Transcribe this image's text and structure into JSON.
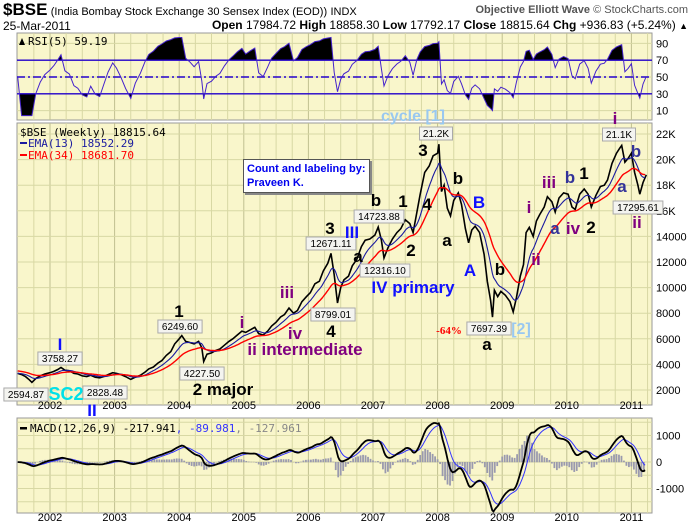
{
  "header": {
    "symbol": "$BSE",
    "description": "(India Bombay Stock Exchange 30 Sensex Index (EOD))",
    "exchange": "INDX",
    "source_brand": "Objective Elliott Wave",
    "source_site": "© StockCharts.com",
    "date": "25-Mar-2011",
    "open_label": "Open",
    "open": "17984.72",
    "high_label": "High",
    "high": "18858.30",
    "low_label": "Low",
    "low": "17792.17",
    "close_label": "Close",
    "close": "18815.64",
    "chg_label": "Chg",
    "chg": "+936.83 (+5.24%)",
    "chg_icon": "up-triangle-icon"
  },
  "info_box": {
    "line1": "Count and labeling by:",
    "line2": "Praveen K."
  },
  "colors": {
    "panel_bg": "#f9f6cb",
    "grid": "#d8d8a4",
    "ema13": "#1a1aa0",
    "ema34": "#ff0000",
    "rsi": "#4422cc",
    "macd": "#000000",
    "signal": "#3333ff",
    "hist": "#9a9aae"
  },
  "chart_data": [
    {
      "type": "line",
      "title": "$BSE (Weekly) 18815.64",
      "legend": [
        "EMA(13) 18552.29",
        "EMA(34) 18681.70"
      ],
      "ytick_labels": [
        "22K",
        "20K",
        "18K",
        "16K",
        "14000",
        "12000",
        "10000",
        "8000",
        "6000",
        "4000",
        "2000"
      ],
      "yticks": [
        22000,
        20000,
        18000,
        16000,
        14000,
        12000,
        10000,
        8000,
        6000,
        4000,
        2000
      ],
      "ylim": [
        1000,
        23000
      ],
      "xlim": [
        2001.5,
        2011.35
      ],
      "xtick_labels": [
        "2002",
        "2003",
        "2004",
        "2005",
        "2006",
        "2007",
        "2008",
        "2009",
        "2010",
        "2011"
      ],
      "series": {
        "name": "$BSE",
        "points": [
          [
            2001.5,
            3300
          ],
          [
            2001.56,
            3200
          ],
          [
            2001.62,
            3050
          ],
          [
            2001.68,
            2800
          ],
          [
            2001.72,
            2595
          ],
          [
            2001.78,
            2900
          ],
          [
            2001.85,
            3100
          ],
          [
            2001.92,
            3250
          ],
          [
            2002.0,
            3350
          ],
          [
            2002.06,
            3450
          ],
          [
            2002.12,
            3600
          ],
          [
            2002.17,
            3758
          ],
          [
            2002.23,
            3550
          ],
          [
            2002.3,
            3500
          ],
          [
            2002.37,
            3300
          ],
          [
            2002.43,
            3250
          ],
          [
            2002.5,
            3100
          ],
          [
            2002.57,
            3050
          ],
          [
            2002.63,
            3150
          ],
          [
            2002.7,
            3000
          ],
          [
            2002.77,
            2950
          ],
          [
            2002.83,
            3050
          ],
          [
            2002.9,
            3200
          ],
          [
            2002.97,
            3350
          ],
          [
            2003.03,
            3300
          ],
          [
            2003.1,
            3200
          ],
          [
            2003.17,
            3050
          ],
          [
            2003.25,
            2828
          ],
          [
            2003.32,
            3000
          ],
          [
            2003.4,
            3150
          ],
          [
            2003.47,
            3400
          ],
          [
            2003.53,
            3650
          ],
          [
            2003.6,
            3800
          ],
          [
            2003.67,
            4100
          ],
          [
            2003.73,
            4300
          ],
          [
            2003.8,
            4700
          ],
          [
            2003.87,
            5000
          ],
          [
            2003.93,
            5600
          ],
          [
            2004.0,
            6000
          ],
          [
            2004.04,
            6250
          ],
          [
            2004.1,
            5800
          ],
          [
            2004.17,
            5700
          ],
          [
            2004.23,
            5600
          ],
          [
            2004.3,
            5800
          ],
          [
            2004.35,
            5300
          ],
          [
            2004.38,
            4227
          ],
          [
            2004.43,
            4800
          ],
          [
            2004.5,
            4900
          ],
          [
            2004.57,
            5100
          ],
          [
            2004.63,
            5200
          ],
          [
            2004.7,
            5500
          ],
          [
            2004.77,
            5800
          ],
          [
            2004.83,
            6000
          ],
          [
            2004.9,
            6300
          ],
          [
            2004.97,
            6600
          ],
          [
            2005.03,
            6500
          ],
          [
            2005.1,
            6700
          ],
          [
            2005.17,
            6900
          ],
          [
            2005.23,
            6400
          ],
          [
            2005.3,
            6300
          ],
          [
            2005.37,
            6600
          ],
          [
            2005.43,
            7000
          ],
          [
            2005.5,
            7300
          ],
          [
            2005.57,
            7700
          ],
          [
            2005.63,
            7900
          ],
          [
            2005.7,
            8400
          ],
          [
            2005.77,
            8000
          ],
          [
            2005.83,
            8200
          ],
          [
            2005.9,
            8900
          ],
          [
            2005.97,
            9300
          ],
          [
            2006.03,
            9600
          ],
          [
            2006.1,
            10300
          ],
          [
            2006.17,
            10500
          ],
          [
            2006.23,
            11300
          ],
          [
            2006.3,
            11900
          ],
          [
            2006.35,
            12671
          ],
          [
            2006.4,
            11000
          ],
          [
            2006.45,
            8799
          ],
          [
            2006.5,
            10000
          ],
          [
            2006.55,
            10600
          ],
          [
            2006.62,
            10900
          ],
          [
            2006.68,
            11700
          ],
          [
            2006.75,
            12200
          ],
          [
            2006.82,
            13200
          ],
          [
            2006.88,
            13700
          ],
          [
            2006.95,
            13800
          ],
          [
            2007.03,
            14100
          ],
          [
            2007.08,
            14724
          ],
          [
            2007.13,
            13700
          ],
          [
            2007.17,
            12316
          ],
          [
            2007.23,
            13100
          ],
          [
            2007.3,
            13800
          ],
          [
            2007.37,
            14300
          ],
          [
            2007.43,
            14600
          ],
          [
            2007.5,
            15300
          ],
          [
            2007.57,
            15000
          ],
          [
            2007.62,
            14300
          ],
          [
            2007.68,
            15900
          ],
          [
            2007.73,
            17300
          ],
          [
            2007.8,
            19000
          ],
          [
            2007.87,
            19500
          ],
          [
            2007.93,
            20300
          ],
          [
            2008.0,
            20500
          ],
          [
            2008.02,
            21200
          ],
          [
            2008.06,
            17500
          ],
          [
            2008.1,
            18000
          ],
          [
            2008.15,
            16200
          ],
          [
            2008.2,
            15600
          ],
          [
            2008.25,
            16800
          ],
          [
            2008.32,
            17400
          ],
          [
            2008.37,
            16500
          ],
          [
            2008.43,
            14600
          ],
          [
            2008.48,
            13500
          ],
          [
            2008.53,
            14500
          ],
          [
            2008.58,
            14800
          ],
          [
            2008.65,
            14300
          ],
          [
            2008.72,
            12600
          ],
          [
            2008.77,
            10500
          ],
          [
            2008.82,
            9000
          ],
          [
            2008.85,
            7697
          ],
          [
            2008.88,
            9800
          ],
          [
            2008.93,
            9300
          ],
          [
            2008.98,
            9700
          ],
          [
            2009.05,
            9400
          ],
          [
            2009.12,
            8900
          ],
          [
            2009.17,
            8100
          ],
          [
            2009.22,
            9200
          ],
          [
            2009.28,
            10900
          ],
          [
            2009.33,
            11800
          ],
          [
            2009.37,
            14300
          ],
          [
            2009.42,
            14700
          ],
          [
            2009.48,
            14000
          ],
          [
            2009.53,
            15200
          ],
          [
            2009.58,
            15700
          ],
          [
            2009.65,
            16300
          ],
          [
            2009.7,
            17100
          ],
          [
            2009.77,
            16700
          ],
          [
            2009.82,
            15900
          ],
          [
            2009.88,
            17000
          ],
          [
            2009.95,
            17400
          ],
          [
            2010.02,
            17300
          ],
          [
            2010.08,
            16300
          ],
          [
            2010.13,
            16100
          ],
          [
            2010.2,
            17300
          ],
          [
            2010.27,
            17700
          ],
          [
            2010.33,
            17300
          ],
          [
            2010.38,
            16300
          ],
          [
            2010.45,
            17200
          ],
          [
            2010.52,
            17900
          ],
          [
            2010.58,
            18000
          ],
          [
            2010.63,
            18400
          ],
          [
            2010.7,
            19700
          ],
          [
            2010.77,
            20500
          ],
          [
            2010.82,
            20900
          ],
          [
            2010.85,
            21100
          ],
          [
            2010.9,
            19800
          ],
          [
            2010.95,
            20100
          ],
          [
            2011.0,
            20500
          ],
          [
            2011.05,
            19000
          ],
          [
            2011.1,
            18000
          ],
          [
            2011.13,
            17296
          ],
          [
            2011.18,
            18200
          ],
          [
            2011.23,
            18815
          ]
        ]
      },
      "annotations": [
        {
          "text": "2594.87",
          "style": "box"
        },
        {
          "text": "3758.27",
          "style": "box"
        },
        {
          "text": "2828.48",
          "style": "box"
        },
        {
          "text": "6249.60",
          "style": "box"
        },
        {
          "text": "4227.50",
          "style": "box"
        },
        {
          "text": "8799.01",
          "style": "box"
        },
        {
          "text": "12671.11",
          "style": "box"
        },
        {
          "text": "14723.88",
          "style": "box"
        },
        {
          "text": "12316.10",
          "style": "box"
        },
        {
          "text": "21.2K",
          "style": "box"
        },
        {
          "text": "7697.39",
          "style": "box"
        },
        {
          "text": "21.1K",
          "style": "box"
        },
        {
          "text": "17295.61",
          "style": "box"
        },
        {
          "text": "SC2",
          "style": "cyan"
        },
        {
          "text": "I",
          "style": "blue"
        },
        {
          "text": "II",
          "style": "blue"
        },
        {
          "text": "1",
          "style": "blk"
        },
        {
          "text": "2 major",
          "style": "blk"
        },
        {
          "text": "i",
          "style": "purple"
        },
        {
          "text": "iii",
          "style": "purple"
        },
        {
          "text": "iv",
          "style": "purple"
        },
        {
          "text": "ii intermediate",
          "style": "purple"
        },
        {
          "text": "4",
          "style": "blk"
        },
        {
          "text": "3",
          "style": "blk"
        },
        {
          "text": "III",
          "style": "blue"
        },
        {
          "text": "b",
          "style": "blk"
        },
        {
          "text": "1",
          "style": "blk"
        },
        {
          "text": "2",
          "style": "blk"
        },
        {
          "text": "a",
          "style": "blk"
        },
        {
          "text": "IV primary",
          "style": "blue"
        },
        {
          "text": "4",
          "style": "blk"
        },
        {
          "text": "3",
          "style": "blk"
        },
        {
          "text": "cycle [1]",
          "style": "lb"
        },
        {
          "text": "b",
          "style": "blk"
        },
        {
          "text": "a",
          "style": "blk"
        },
        {
          "text": "B",
          "style": "blue"
        },
        {
          "text": "A",
          "style": "blue"
        },
        {
          "text": "b",
          "style": "blk"
        },
        {
          "text": "-64%",
          "style": "red"
        },
        {
          "text": "[2]",
          "style": "lb"
        },
        {
          "text": "a",
          "style": "blk"
        },
        {
          "text": "i",
          "style": "purple"
        },
        {
          "text": "ii",
          "style": "purple"
        },
        {
          "text": "a",
          "style": "navy"
        },
        {
          "text": "iii",
          "style": "purple"
        },
        {
          "text": "b",
          "style": "navy"
        },
        {
          "text": "iv",
          "style": "purple"
        },
        {
          "text": "1",
          "style": "blk"
        },
        {
          "text": "2",
          "style": "blk"
        },
        {
          "text": "i",
          "style": "purple"
        },
        {
          "text": "b",
          "style": "navy"
        },
        {
          "text": "a",
          "style": "navy"
        },
        {
          "text": "ii",
          "style": "purple"
        }
      ]
    },
    {
      "type": "line",
      "title": "RSI(5) 59.19",
      "ytick_labels": [
        "90",
        "70",
        "50",
        "30",
        "10"
      ],
      "yticks": [
        90,
        70,
        50,
        30,
        10
      ],
      "ylim": [
        0,
        100
      ],
      "levels": [
        70,
        50,
        30
      ]
    },
    {
      "type": "line",
      "title": "MACD(12,26,9)",
      "values_text": [
        "-217.941",
        "-89.981",
        "-127.961"
      ],
      "ytick_labels": [
        "1000",
        "0",
        "-1000"
      ],
      "yticks": [
        1000,
        0,
        -1000
      ],
      "ylim": [
        -2000,
        1700
      ]
    }
  ]
}
